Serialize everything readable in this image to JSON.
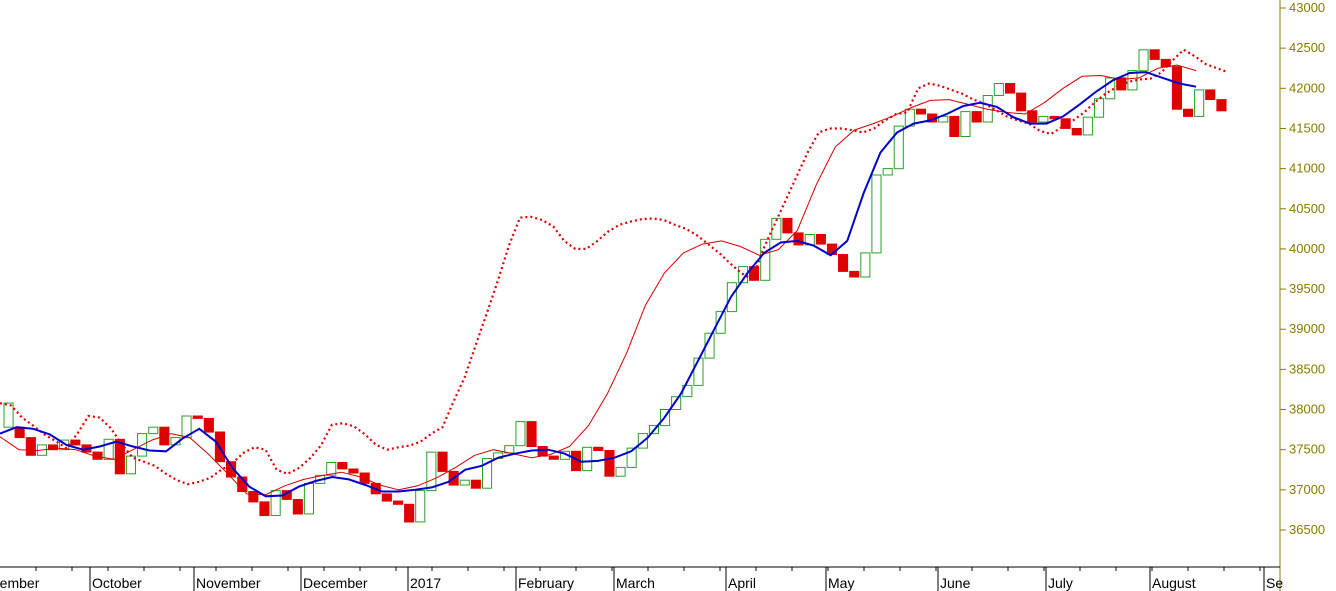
{
  "chart_data": {
    "type": "line",
    "title": "",
    "xlabel": "",
    "ylabel": "",
    "ylim": [
      36300,
      43000
    ],
    "y_ticks": [
      36500,
      37000,
      37500,
      38000,
      38500,
      39000,
      39500,
      40000,
      40500,
      41000,
      41500,
      42000,
      42500,
      43000
    ],
    "y_tick_labels": [
      "36500",
      "37000",
      "37500",
      "38000",
      "38500",
      "39000",
      "39500",
      "40000",
      "40500",
      "41000",
      "41500",
      "42000",
      "42500",
      "43000"
    ],
    "x_tick_labels": [
      "ptember",
      "October",
      "November",
      "December",
      "2017",
      "February",
      "March",
      "April",
      "May",
      "June",
      "July",
      "August",
      "Se"
    ],
    "grid": false,
    "colors": {
      "axis": "#8a7a00",
      "up_candle": "#2aa02a",
      "down_candle": "#e00000",
      "moving_average": "#0000cc",
      "envelope_thin": "#d40000",
      "envelope_dotted": "#e00000"
    },
    "series": [
      {
        "values": [
          37700,
          37780,
          37760,
          37690,
          37560,
          37500,
          37540,
          37600,
          37540,
          37490,
          37480,
          37640,
          37760,
          37600,
          37270,
          37040,
          36920,
          36930,
          37040,
          37110,
          37160,
          37130,
          37060,
          36980,
          36980,
          37000,
          37030,
          37100,
          37250,
          37300,
          37400,
          37450,
          37490,
          37500,
          37450,
          37350,
          37360,
          37400,
          37480,
          37650,
          37900,
          38200,
          38600,
          39000,
          39400,
          39700,
          39950,
          40080,
          40100,
          40040,
          39920,
          40100,
          40700,
          41200,
          41450,
          41560,
          41600,
          41680,
          41780,
          41820,
          41770,
          41640,
          41560,
          41560,
          41650,
          41800,
          41960,
          42100,
          42190,
          42200,
          42130,
          42060,
          42020
        ]
      },
      {
        "values": [
          37660,
          37500,
          37490,
          37520,
          37500,
          37420,
          37380,
          37500,
          37620,
          37700,
          37650,
          37440,
          37200,
          36950,
          36940,
          37050,
          37130,
          37180,
          37220,
          37160,
          37060,
          37000,
          37050,
          37150,
          37280,
          37430,
          37500,
          37450,
          37400,
          37440,
          37540,
          37800,
          38200,
          38700,
          39300,
          39700,
          39950,
          40060,
          40100,
          40030,
          39920,
          39990,
          40230,
          40800,
          41270,
          41480,
          41560,
          41650,
          41760,
          41850,
          41860,
          41800,
          41740,
          41700,
          41680,
          41820,
          42000,
          42150,
          42160,
          42110,
          42130,
          42250,
          42290,
          42220
        ]
      },
      {
        "values": [
          38080,
          38050,
          37900,
          37800,
          37690,
          37610,
          37520,
          37700,
          37920,
          37900,
          37770,
          37570,
          37400,
          37350,
          37300,
          37200,
          37120,
          37070,
          37100,
          37150,
          37250,
          37330,
          37460,
          37530,
          37500,
          37250,
          37200,
          37270,
          37390,
          37550,
          37810,
          37830,
          37790,
          37690,
          37560,
          37500,
          37530,
          37550,
          37600,
          37700,
          37780,
          38100,
          38400,
          38800,
          39200,
          39600,
          40040,
          40390,
          40400,
          40360,
          40280,
          40100,
          40000,
          40000,
          40100,
          40220,
          40300,
          40340,
          40370,
          40380,
          40360,
          40300,
          40250,
          40170,
          40060,
          39950,
          39820,
          39700,
          39620,
          40000,
          40300,
          40600,
          40900,
          41200,
          41450,
          41500,
          41500,
          41480,
          41450,
          41500,
          41600,
          41680,
          41700,
          42000,
          42060,
          42030,
          41980,
          41930,
          41860,
          41810,
          41730,
          41650,
          41600,
          41560,
          41470,
          41430,
          41520,
          41600,
          41700,
          41830,
          41940,
          42020,
          42080,
          42110,
          42120,
          42200,
          42350,
          42480,
          42400,
          42300,
          42250,
          42200
        ]
      }
    ],
    "candles": [
      [
        38080,
        37780,
        1
      ],
      [
        37780,
        37650,
        0
      ],
      [
        37650,
        37430,
        0
      ],
      [
        37430,
        37560,
        1
      ],
      [
        37560,
        37500,
        0
      ],
      [
        37500,
        37620,
        1
      ],
      [
        37620,
        37560,
        0
      ],
      [
        37560,
        37470,
        0
      ],
      [
        37470,
        37380,
        0
      ],
      [
        37380,
        37630,
        1
      ],
      [
        37630,
        37200,
        0
      ],
      [
        37200,
        37420,
        1
      ],
      [
        37420,
        37700,
        1
      ],
      [
        37700,
        37780,
        1
      ],
      [
        37780,
        37560,
        0
      ],
      [
        37560,
        37650,
        1
      ],
      [
        37650,
        37920,
        1
      ],
      [
        37920,
        37890,
        0
      ],
      [
        37890,
        37720,
        0
      ],
      [
        37720,
        37350,
        0
      ],
      [
        37350,
        37160,
        0
      ],
      [
        37160,
        36980,
        0
      ],
      [
        36980,
        36850,
        0
      ],
      [
        36850,
        36680,
        0
      ],
      [
        36680,
        36990,
        1
      ],
      [
        36990,
        36880,
        0
      ],
      [
        36880,
        36700,
        0
      ],
      [
        36700,
        37080,
        1
      ],
      [
        37080,
        37180,
        1
      ],
      [
        37180,
        37340,
        1
      ],
      [
        37340,
        37260,
        0
      ],
      [
        37260,
        37210,
        0
      ],
      [
        37210,
        37080,
        0
      ],
      [
        37080,
        36950,
        0
      ],
      [
        36950,
        36860,
        0
      ],
      [
        36860,
        36820,
        0
      ],
      [
        36820,
        36600,
        0
      ],
      [
        36600,
        36990,
        1
      ],
      [
        36990,
        37470,
        1
      ],
      [
        37470,
        37230,
        0
      ],
      [
        37230,
        37060,
        0
      ],
      [
        37060,
        37120,
        1
      ],
      [
        37120,
        37020,
        0
      ],
      [
        37020,
        37390,
        1
      ],
      [
        37390,
        37460,
        1
      ],
      [
        37460,
        37550,
        1
      ],
      [
        37550,
        37850,
        1
      ],
      [
        37850,
        37540,
        0
      ],
      [
        37540,
        37420,
        0
      ],
      [
        37420,
        37380,
        0
      ],
      [
        37380,
        37480,
        1
      ],
      [
        37480,
        37240,
        0
      ],
      [
        37240,
        37530,
        1
      ],
      [
        37530,
        37490,
        0
      ],
      [
        37490,
        37170,
        0
      ],
      [
        37170,
        37280,
        1
      ],
      [
        37280,
        37520,
        1
      ],
      [
        37520,
        37700,
        1
      ],
      [
        37700,
        37800,
        1
      ],
      [
        37800,
        38000,
        1
      ],
      [
        38000,
        38160,
        1
      ],
      [
        38160,
        38300,
        1
      ],
      [
        38300,
        38640,
        1
      ],
      [
        38640,
        38950,
        1
      ],
      [
        38950,
        39220,
        1
      ],
      [
        39220,
        39580,
        1
      ],
      [
        39580,
        39780,
        1
      ],
      [
        39780,
        39610,
        0
      ],
      [
        39610,
        40120,
        1
      ],
      [
        40120,
        40380,
        1
      ],
      [
        40380,
        40200,
        0
      ],
      [
        40200,
        40050,
        0
      ],
      [
        40050,
        40180,
        1
      ],
      [
        40180,
        40060,
        0
      ],
      [
        40060,
        39930,
        0
      ],
      [
        39930,
        39720,
        0
      ],
      [
        39720,
        39650,
        0
      ],
      [
        39650,
        39950,
        1
      ],
      [
        39950,
        40920,
        1
      ],
      [
        40920,
        41000,
        1
      ],
      [
        41000,
        41530,
        1
      ],
      [
        41530,
        41740,
        1
      ],
      [
        41740,
        41680,
        0
      ],
      [
        41680,
        41580,
        0
      ],
      [
        41580,
        41650,
        1
      ],
      [
        41650,
        41400,
        0
      ],
      [
        41400,
        41710,
        1
      ],
      [
        41710,
        41580,
        0
      ],
      [
        41580,
        41910,
        1
      ],
      [
        41910,
        42060,
        1
      ],
      [
        42060,
        41940,
        0
      ],
      [
        41940,
        41720,
        0
      ],
      [
        41720,
        41580,
        0
      ],
      [
        41580,
        41650,
        1
      ],
      [
        41650,
        41620,
        0
      ],
      [
        41620,
        41500,
        0
      ],
      [
        41500,
        41420,
        0
      ],
      [
        41420,
        41640,
        1
      ],
      [
        41640,
        41870,
        1
      ],
      [
        41870,
        42130,
        1
      ],
      [
        42130,
        41980,
        0
      ],
      [
        41980,
        42220,
        1
      ],
      [
        42220,
        42480,
        1
      ],
      [
        42480,
        42360,
        0
      ],
      [
        42360,
        42270,
        0
      ],
      [
        42270,
        41740,
        0
      ],
      [
        41740,
        41650,
        0
      ],
      [
        41650,
        41980,
        1
      ],
      [
        41980,
        41860,
        0
      ],
      [
        41860,
        41720,
        0
      ]
    ]
  }
}
